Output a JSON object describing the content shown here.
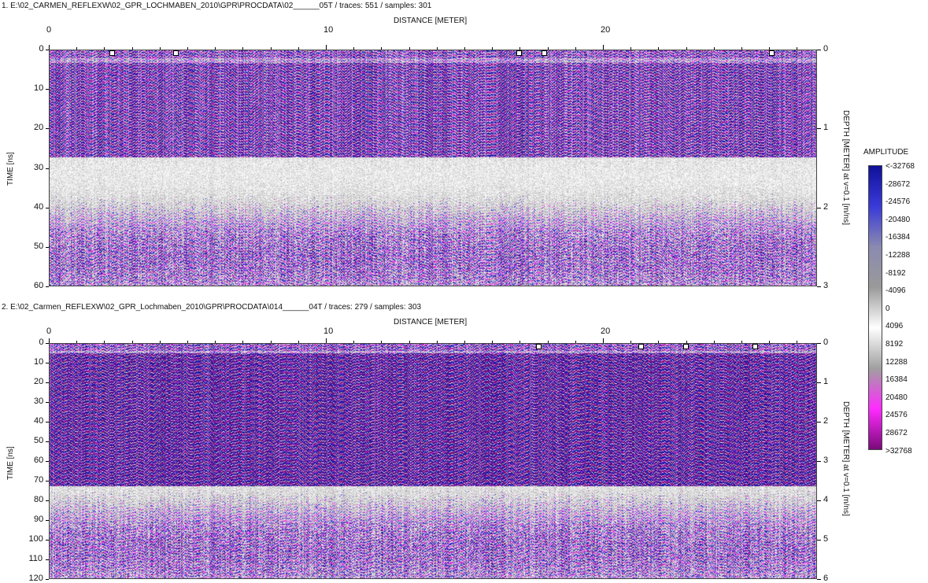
{
  "profile1": {
    "header": "1. E:\\02_CARMEN_REFLEXW\\02_GPR_LOCHMABEN_2010\\GPR\\PROCDATA\\02______05T / traces: 551 / samples: 301",
    "x_title": "DISTANCE [METER]",
    "x_ticks": [
      "0",
      "10",
      "20"
    ],
    "y_title": "TIME [ns]",
    "y_ticks": [
      "0",
      "10",
      "20",
      "30",
      "40",
      "50",
      "60"
    ],
    "depth_title": "DEPTH [METER] at v=0.1 [m/ns]",
    "depth_ticks": [
      "0",
      "1",
      "2",
      "3"
    ],
    "markers_m": [
      2.3,
      4.6,
      17.0,
      17.9,
      26.1
    ]
  },
  "profile2": {
    "header": "2. E:\\02_Carmen_REFLEXW\\02_GPR_Lochmaben_2010\\GPR\\PROCDATA\\014______04T / traces: 279 / samples: 303",
    "x_title": "DISTANCE [METER]",
    "x_ticks": [
      "0",
      "10",
      "20"
    ],
    "y_title": "TIME [ns]",
    "y_ticks": [
      "0",
      "10",
      "20",
      "30",
      "40",
      "50",
      "60",
      "70",
      "80",
      "90",
      "100",
      "110",
      "120"
    ],
    "depth_title": "DEPTH [METER] at v=0.1 [m/ns]",
    "depth_ticks": [
      "0",
      "1",
      "2",
      "3",
      "4",
      "5",
      "6"
    ],
    "markers_m": [
      17.7,
      21.4,
      23.0,
      25.5
    ]
  },
  "legend": {
    "title": "AMPLITUDE",
    "labels": [
      "<-32768",
      "-28672",
      "-24576",
      "-20480",
      "-16384",
      "-12288",
      "-8192",
      "-4096",
      "0",
      "4096",
      "8192",
      "12288",
      "16384",
      "20480",
      "24576",
      "28672",
      ">32768"
    ],
    "colors": [
      "#10109a",
      "#3a3ad8",
      "#8a8ab0",
      "#9a9a9a",
      "#ffffff",
      "#a0a0a0",
      "#ff2bff",
      "#7a0a7a"
    ]
  }
}
